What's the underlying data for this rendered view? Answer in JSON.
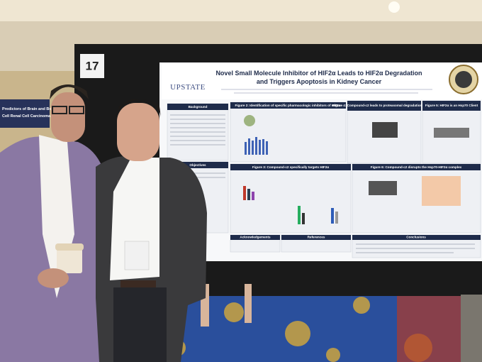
{
  "board_number": "17",
  "side_banner": {
    "lines": [
      "Predictors of Brain and Bone",
      "Cell Renal Cell Carcinoma"
    ]
  },
  "poster": {
    "logo": "UPSTATE",
    "title_lines": [
      "Novel Small Molecule Inhibitor of HIF2α Leads to HIF2α Degradation",
      "and Triggers Apoptosis in Kidney Cancer"
    ],
    "sections": {
      "background": "Background",
      "objectives": "Objectives",
      "figure2": "Figure 2: Identification of specific pharmacologic inhibitors of HIF2α",
      "figure3": "Figure 3: Compound-c2 specifically targets HIF2α",
      "figure4": "Figure 4: Compound-c2 leads to proteasomal degradation of HIF2α",
      "figure5": "Figure 5: HIF2α is an Hsp70 Client",
      "figure6": "Figure 6: Compound-c2 disrupts the Hsp70-HIF2α complex",
      "conclusions": "Conclusions",
      "acknowledgements": "Acknowledgements",
      "references": "References"
    }
  }
}
